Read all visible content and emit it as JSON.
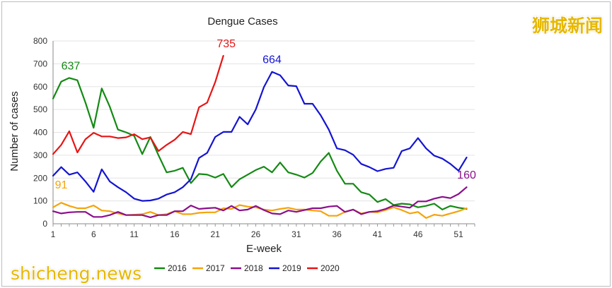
{
  "watermark": {
    "chinese": "狮城新闻",
    "site": "shicheng.news"
  },
  "chart_data": {
    "type": "line",
    "title": "Dengue Cases",
    "xlabel": "E-week",
    "ylabel": "Number of cases",
    "ylim": [
      0,
      800
    ],
    "xlim": [
      1,
      53
    ],
    "yticks": [
      0,
      100,
      200,
      300,
      400,
      500,
      600,
      700,
      800
    ],
    "xticks": [
      1,
      6,
      11,
      16,
      21,
      26,
      31,
      36,
      41,
      46,
      51
    ],
    "grid": "horizontal",
    "legend_position": "bottom",
    "series": [
      {
        "name": "2016",
        "color": "#138a13",
        "values": [
          548,
          622,
          638,
          628,
          530,
          420,
          592,
          512,
          412,
          400,
          385,
          305,
          380,
          300,
          225,
          232,
          245,
          178,
          218,
          215,
          202,
          218,
          160,
          195,
          215,
          235,
          250,
          225,
          268,
          225,
          215,
          202,
          222,
          272,
          310,
          232,
          175,
          175,
          138,
          128,
          95,
          108,
          82,
          88,
          85,
          72,
          78,
          88,
          62,
          78,
          70,
          65
        ],
        "peak_label": "637",
        "peak_week": 3
      },
      {
        "name": "2017",
        "color": "#f5a30a",
        "values": [
          72,
          92,
          78,
          68,
          68,
          80,
          58,
          55,
          45,
          38,
          40,
          42,
          52,
          38,
          42,
          55,
          42,
          42,
          48,
          50,
          50,
          68,
          65,
          82,
          75,
          72,
          62,
          58,
          65,
          70,
          62,
          62,
          58,
          55,
          35,
          35,
          52,
          62,
          45,
          52,
          50,
          60,
          72,
          60,
          45,
          52,
          25,
          40,
          35,
          45,
          55,
          68
        ],
        "peak_label": "91",
        "peak_week": 2
      },
      {
        "name": "2018",
        "color": "#8b0f8b",
        "values": [
          55,
          45,
          50,
          52,
          52,
          30,
          30,
          38,
          52,
          38,
          38,
          38,
          28,
          38,
          38,
          55,
          55,
          80,
          65,
          68,
          70,
          58,
          78,
          58,
          62,
          78,
          60,
          45,
          42,
          58,
          52,
          60,
          68,
          68,
          75,
          78,
          52,
          62,
          42,
          52,
          55,
          65,
          80,
          75,
          70,
          98,
          98,
          110,
          118,
          112,
          130,
          160
        ],
        "peak_label": "160",
        "peak_week": 52
      },
      {
        "name": "2019",
        "color": "#1414d2",
        "values": [
          210,
          248,
          215,
          225,
          185,
          140,
          238,
          185,
          160,
          138,
          110,
          100,
          102,
          110,
          128,
          138,
          160,
          195,
          288,
          310,
          380,
          402,
          402,
          468,
          435,
          500,
          598,
          665,
          650,
          605,
          602,
          525,
          525,
          475,
          412,
          330,
          322,
          302,
          262,
          248,
          230,
          240,
          245,
          318,
          330,
          375,
          330,
          298,
          285,
          262,
          232,
          290
        ],
        "peak_label": "664",
        "peak_week": 28
      },
      {
        "name": "2020",
        "color": "#e81414",
        "values": [
          305,
          345,
          405,
          312,
          370,
          398,
          382,
          382,
          375,
          378,
          392,
          370,
          378,
          318,
          345,
          368,
          402,
          392,
          510,
          530,
          620,
          735
        ],
        "peak_label": "735",
        "peak_week": 22
      }
    ]
  }
}
